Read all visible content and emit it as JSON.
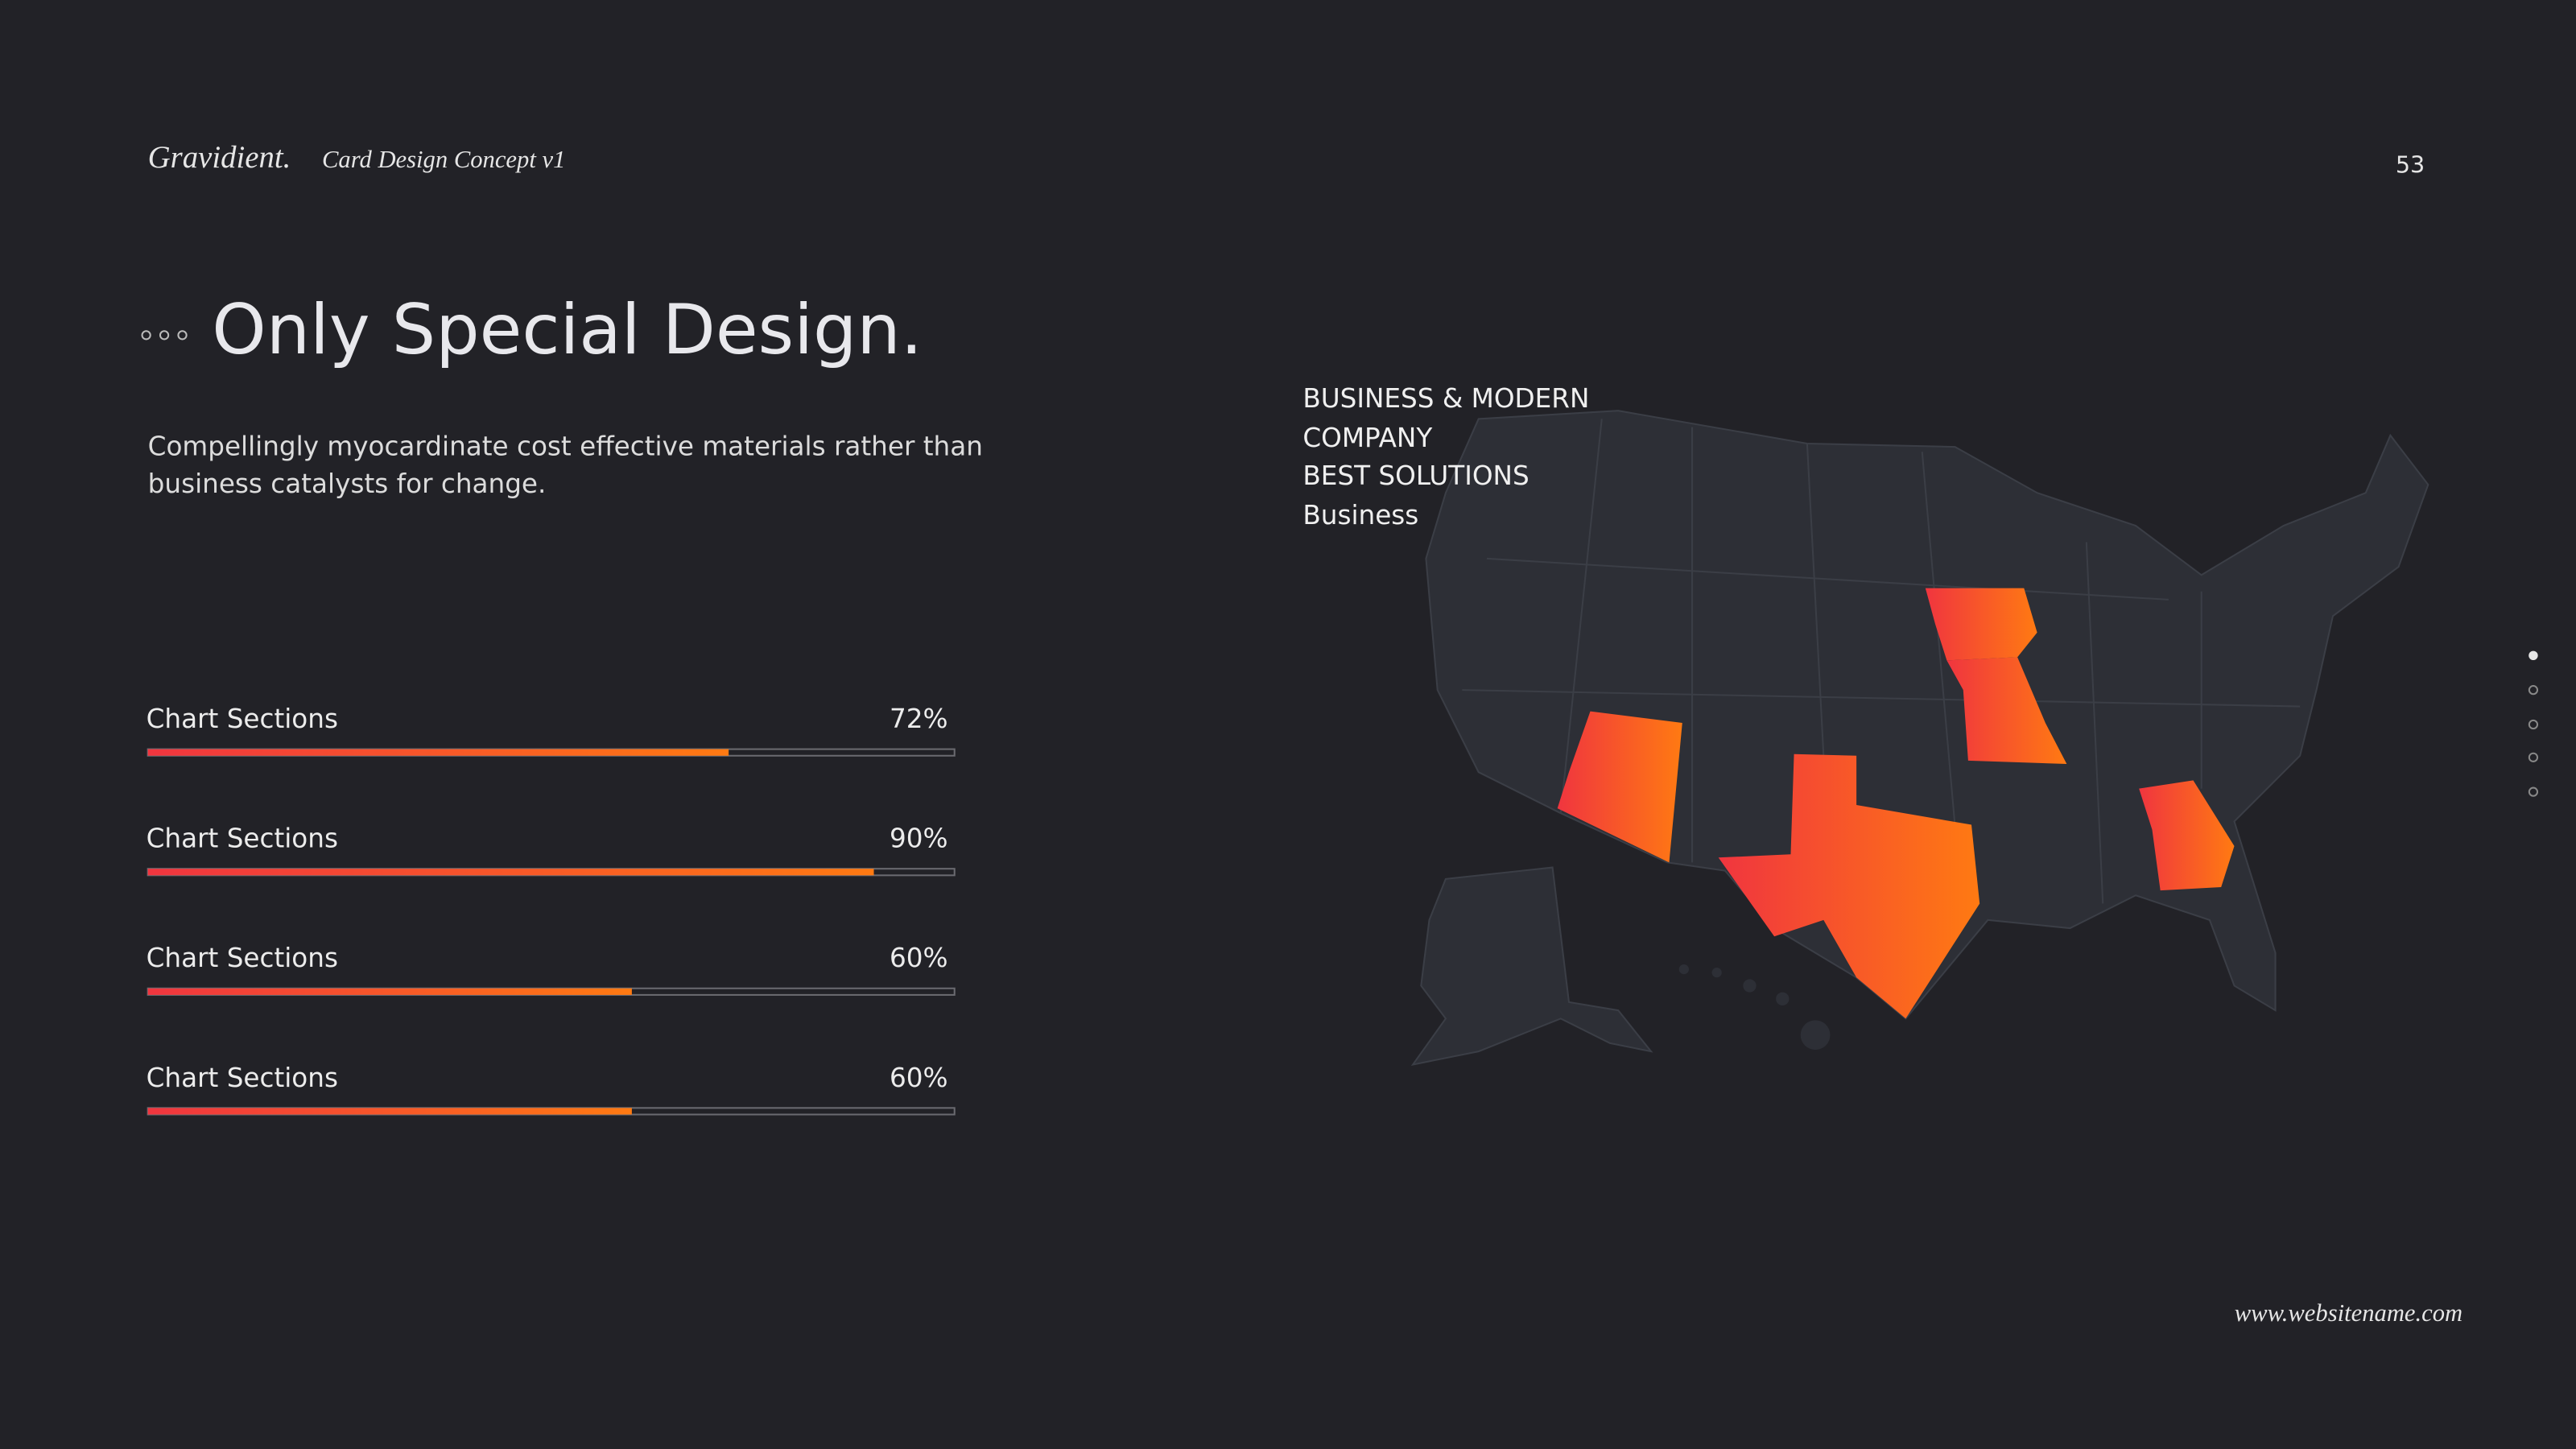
{
  "header": {
    "brand": "Gravidient.",
    "subtitle": "Card Design Concept v1",
    "page_number": 53
  },
  "title": "Only Special Design.",
  "description": [
    "Compellingly myocardinate cost effective materials rather than",
    "business catalysts for change."
  ],
  "progress": {
    "xlim": [
      0,
      100
    ],
    "items": [
      {
        "label": "Chart Sections",
        "value": 72,
        "value_label": "72%"
      },
      {
        "label": "Chart Sections",
        "value": 90,
        "value_label": "90%"
      },
      {
        "label": "Chart Sections",
        "value": 60,
        "value_label": "60%"
      },
      {
        "label": "Chart Sections",
        "value": 60,
        "value_label": "60%"
      }
    ]
  },
  "map_labels": [
    "BUSINESS & MODERN",
    "COMPANY",
    "BEST SOLUTIONS",
    "Business"
  ],
  "footer": {
    "url": "www.websitename.com"
  }
}
